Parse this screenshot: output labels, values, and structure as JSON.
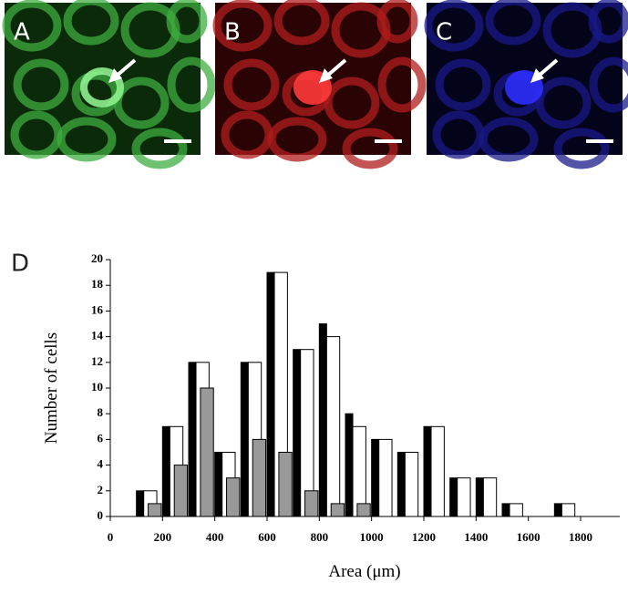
{
  "panels": [
    "A",
    "B",
    "C"
  ],
  "panel_label": "D",
  "chart_data": {
    "type": "bar",
    "x_label": "Area (μm)",
    "y_label": "Number of cells",
    "x": [
      100,
      200,
      300,
      400,
      500,
      600,
      700,
      800,
      900,
      1000,
      1100,
      1200,
      1300,
      1400,
      1500,
      1600,
      1700
    ],
    "series": [
      {
        "color": "#000000",
        "values": [
          2,
          7,
          12,
          5,
          12,
          19,
          13,
          15,
          8,
          6,
          5,
          7,
          3,
          3,
          1,
          0,
          1
        ]
      },
      {
        "color": "#ffffff",
        "values": [
          2,
          7,
          12,
          5,
          12,
          19,
          13,
          14,
          7,
          6,
          5,
          7,
          3,
          3,
          1,
          0,
          1
        ]
      },
      {
        "color": "#999999",
        "values": [
          1,
          4,
          10,
          3,
          6,
          5,
          2,
          1,
          1,
          0,
          0,
          0,
          0,
          0,
          0,
          0,
          0
        ]
      }
    ],
    "xlim": [
      0,
      1950
    ],
    "xticks": [
      0,
      200,
      400,
      600,
      800,
      1000,
      1200,
      1400,
      1600,
      1800
    ],
    "ylim": [
      0,
      20
    ],
    "yticks": [
      0,
      2,
      4,
      6,
      8,
      10,
      12,
      14,
      16,
      18,
      20
    ]
  }
}
